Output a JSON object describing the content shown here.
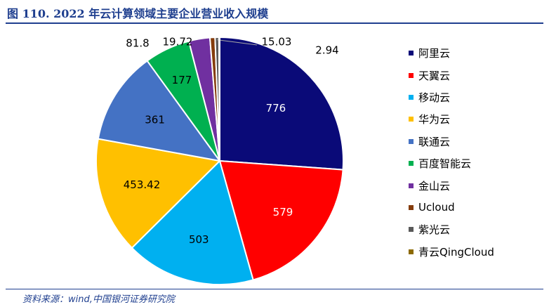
{
  "header": {
    "title": "图 110. 2022 年云计算领域主要企业营业收入规模"
  },
  "footer": {
    "source": "资料来源：wind,中国银河证券研究院"
  },
  "chart_data": {
    "type": "pie",
    "title": "图 110. 2022 年云计算领域主要企业营业收入规模",
    "legend_position": "right",
    "slices": [
      {
        "label": "阿里云",
        "value": 776,
        "display": "776",
        "color": "#0a0a78"
      },
      {
        "label": "天翼云",
        "value": 579,
        "display": "579",
        "color": "#ff0000"
      },
      {
        "label": "移动云",
        "value": 503,
        "display": "503",
        "color": "#00b0f0"
      },
      {
        "label": "华为云",
        "value": 453.42,
        "display": "453.42",
        "color": "#ffc000"
      },
      {
        "label": "联通云",
        "value": 361,
        "display": "361",
        "color": "#4472c4"
      },
      {
        "label": "百度智能云",
        "value": 177,
        "display": "177",
        "color": "#00b050"
      },
      {
        "label": "金山云",
        "value": 81.8,
        "display": "81.8",
        "color": "#7030a0"
      },
      {
        "label": "Ucloud",
        "value": 19.72,
        "display": "19.72",
        "color": "#843c0c"
      },
      {
        "label": "紫光云",
        "value": 15.03,
        "display": "15.03",
        "color": "#595959"
      },
      {
        "label": "青云QingCloud",
        "value": 2.94,
        "display": "2.94",
        "color": "#8c6a00"
      }
    ]
  }
}
